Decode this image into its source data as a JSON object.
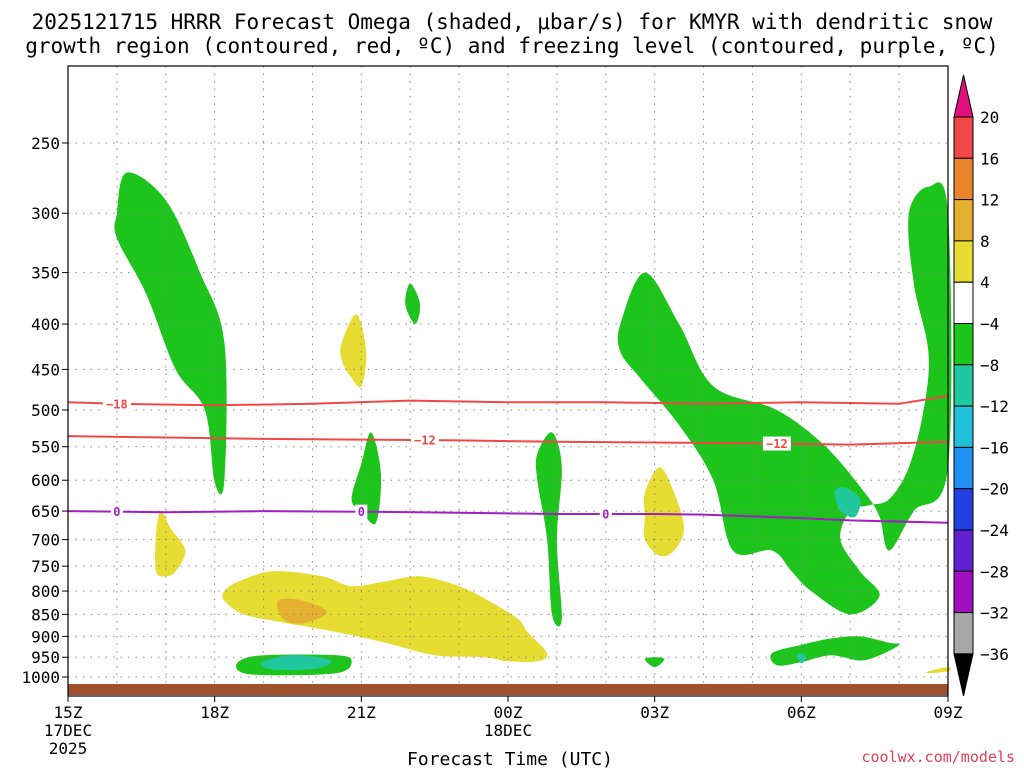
{
  "title": {
    "line1": "2025121715 HRRR Forecast Omega (shaded, μbar/s) for KMYR with dendritic snow",
    "line2": "growth region (contoured, red, ºC) and freezing level (contoured, purple, ºC)"
  },
  "credit": "coolwx.com/models",
  "colors": {
    "dgz": "#f04848",
    "freezing": "#a020c0",
    "ground": "#a0522d",
    "grid": "#888888"
  },
  "chart_data": {
    "type": "heatmap",
    "xlabel": "Forecast Time (UTC)",
    "ylabel": "",
    "xlim_hours": [
      0,
      18
    ],
    "ylim_hpa": [
      1015,
      190
    ],
    "y_ticks": [
      250,
      300,
      350,
      400,
      450,
      500,
      550,
      600,
      650,
      700,
      750,
      800,
      850,
      900,
      950,
      1000
    ],
    "x_ticks": [
      {
        "hour": 0,
        "label": "15Z",
        "sub1": "17DEC",
        "sub2": "2025"
      },
      {
        "hour": 3,
        "label": "18Z",
        "sub1": "",
        "sub2": ""
      },
      {
        "hour": 6,
        "label": "21Z",
        "sub1": "",
        "sub2": ""
      },
      {
        "hour": 9,
        "label": "00Z",
        "sub1": "18DEC",
        "sub2": ""
      },
      {
        "hour": 12,
        "label": "03Z",
        "sub1": "",
        "sub2": ""
      },
      {
        "hour": 15,
        "label": "06Z",
        "sub1": "",
        "sub2": ""
      },
      {
        "hour": 18,
        "label": "09Z",
        "sub1": "",
        "sub2": ""
      }
    ],
    "colorbar": [
      {
        "label": "20",
        "from": 16,
        "color": "#f04848"
      },
      {
        "label": "16",
        "from": 12,
        "color": "#e8852a"
      },
      {
        "label": "12",
        "from": 8,
        "color": "#e4b030"
      },
      {
        "label": "8",
        "from": 4,
        "color": "#e6dc32"
      },
      {
        "label": "4",
        "from": -4,
        "color": "#ffffff"
      },
      {
        "label": "−4",
        "from": -8,
        "color": "#1cc41c"
      },
      {
        "label": "−8",
        "from": -12,
        "color": "#20c8a0"
      },
      {
        "label": "−12",
        "from": -16,
        "color": "#20c0d8"
      },
      {
        "label": "−16",
        "from": -20,
        "color": "#2090f0"
      },
      {
        "label": "−20",
        "from": -24,
        "color": "#2040e0"
      },
      {
        "label": "−24",
        "from": -28,
        "color": "#6020d0"
      },
      {
        "label": "−28",
        "from": -32,
        "color": "#a010c0"
      },
      {
        "label": "−32",
        "from": -36,
        "color": "#a8a8a8"
      },
      {
        "label": "−36",
        "from": -40,
        "color": "#000000"
      }
    ],
    "colorbar_top_color": "#e0107a",
    "contours": [
      {
        "name": "dgz-minus18",
        "label": "−18",
        "color": "#f04848",
        "points": [
          [
            0,
            490
          ],
          [
            1,
            492
          ],
          [
            3,
            494
          ],
          [
            5,
            492
          ],
          [
            7,
            488
          ],
          [
            9,
            490
          ],
          [
            11,
            490
          ],
          [
            13,
            492
          ],
          [
            15,
            490
          ],
          [
            17,
            492
          ],
          [
            18,
            482
          ]
        ],
        "label_at": [
          1
        ]
      },
      {
        "name": "dgz-minus12",
        "label": "−12",
        "color": "#f04848",
        "points": [
          [
            0,
            535
          ],
          [
            2,
            537
          ],
          [
            4,
            539
          ],
          [
            6,
            540
          ],
          [
            8,
            541
          ],
          [
            10,
            543
          ],
          [
            12,
            544
          ],
          [
            14,
            545
          ],
          [
            16,
            547
          ],
          [
            18,
            543
          ]
        ],
        "label_at": [
          7.3,
          14.5
        ]
      },
      {
        "name": "freezing-level-0",
        "label": "0",
        "color": "#a020c0",
        "points": [
          [
            0,
            650
          ],
          [
            2,
            652
          ],
          [
            4,
            650
          ],
          [
            6,
            651
          ],
          [
            8,
            653
          ],
          [
            10,
            655
          ],
          [
            12,
            655
          ],
          [
            13,
            656
          ],
          [
            15,
            662
          ],
          [
            16,
            666
          ],
          [
            18,
            670
          ]
        ],
        "label_at": [
          1,
          6,
          11
        ]
      }
    ],
    "omega_regions": [
      {
        "value": -6,
        "points": [
          [
            1.0,
            300
          ],
          [
            1.2,
            270
          ],
          [
            2.0,
            290
          ],
          [
            2.7,
            350
          ],
          [
            3.2,
            420
          ],
          [
            3.2,
            600
          ],
          [
            3.0,
            603
          ],
          [
            2.8,
            500
          ],
          [
            2.2,
            450
          ],
          [
            1.6,
            370
          ],
          [
            1.0,
            320
          ]
        ]
      },
      {
        "value": -6,
        "points": [
          [
            5.8,
            630
          ],
          [
            6.0,
            575
          ],
          [
            6.2,
            530
          ],
          [
            6.4,
            590
          ],
          [
            6.3,
            670
          ],
          [
            6.0,
            650
          ]
        ]
      },
      {
        "value": -6,
        "points": [
          [
            7.0,
            360
          ],
          [
            7.2,
            380
          ],
          [
            7.1,
            400
          ],
          [
            6.9,
            380
          ]
        ]
      },
      {
        "value": -6,
        "points": [
          [
            9.6,
            560
          ],
          [
            9.9,
            530
          ],
          [
            10.1,
            580
          ],
          [
            10.0,
            700
          ],
          [
            10.1,
            860
          ],
          [
            9.9,
            850
          ],
          [
            9.8,
            700
          ],
          [
            9.6,
            600
          ]
        ]
      },
      {
        "value": -6,
        "points": [
          [
            11.3,
            400
          ],
          [
            11.8,
            350
          ],
          [
            12.5,
            400
          ],
          [
            13.2,
            470
          ],
          [
            14.5,
            500
          ],
          [
            15.5,
            550
          ],
          [
            16.3,
            620
          ],
          [
            16.6,
            660
          ],
          [
            16.8,
            720
          ],
          [
            17.3,
            650
          ],
          [
            18.0,
            580
          ],
          [
            18.0,
            300
          ],
          [
            17.6,
            280
          ],
          [
            17.2,
            300
          ],
          [
            17.3,
            360
          ],
          [
            17.6,
            430
          ],
          [
            17.5,
            500
          ],
          [
            17.2,
            580
          ],
          [
            16.8,
            630
          ],
          [
            16.4,
            640
          ],
          [
            16.0,
            650
          ],
          [
            15.8,
            700
          ],
          [
            16.2,
            760
          ],
          [
            16.6,
            810
          ],
          [
            16.0,
            850
          ],
          [
            15.2,
            800
          ],
          [
            14.8,
            760
          ],
          [
            14.4,
            720
          ],
          [
            13.6,
            720
          ],
          [
            13.2,
            600
          ],
          [
            12.5,
            520
          ],
          [
            11.7,
            460
          ],
          [
            11.3,
            430
          ]
        ]
      },
      {
        "value": -6,
        "points": [
          [
            3.5,
            960
          ],
          [
            4.0,
            945
          ],
          [
            5.5,
            945
          ],
          [
            5.8,
            960
          ],
          [
            5.5,
            990
          ],
          [
            4.0,
            995
          ],
          [
            3.5,
            985
          ]
        ]
      },
      {
        "value": -6,
        "points": [
          [
            11.8,
            955
          ],
          [
            12.0,
            950
          ],
          [
            12.2,
            955
          ],
          [
            12.0,
            975
          ]
        ]
      },
      {
        "value": -6,
        "points": [
          [
            14.4,
            940
          ],
          [
            15.0,
            920
          ],
          [
            15.6,
            905
          ],
          [
            16.2,
            900
          ],
          [
            16.8,
            915
          ],
          [
            17.0,
            920
          ],
          [
            16.6,
            945
          ],
          [
            16.2,
            958
          ],
          [
            15.6,
            945
          ],
          [
            15.0,
            962
          ],
          [
            14.5,
            970
          ]
        ]
      },
      {
        "value": -10,
        "points": [
          [
            4.0,
            960
          ],
          [
            4.5,
            945
          ],
          [
            5.0,
            948
          ],
          [
            5.4,
            960
          ],
          [
            5.1,
            978
          ],
          [
            4.4,
            982
          ],
          [
            4.0,
            975
          ]
        ]
      },
      {
        "value": -10,
        "points": [
          [
            15.7,
            615
          ],
          [
            15.9,
            612
          ],
          [
            16.2,
            630
          ],
          [
            16.1,
            660
          ],
          [
            15.8,
            650
          ],
          [
            15.7,
            630
          ]
        ]
      },
      {
        "value": -10,
        "points": [
          [
            14.9,
            945
          ],
          [
            15.0,
            940
          ],
          [
            15.1,
            950
          ],
          [
            15.0,
            965
          ]
        ]
      },
      {
        "value": 6,
        "points": [
          [
            5.6,
            420
          ],
          [
            5.9,
            390
          ],
          [
            6.1,
            430
          ],
          [
            6.0,
            470
          ],
          [
            5.8,
            460
          ],
          [
            5.6,
            440
          ]
        ]
      },
      {
        "value": 6,
        "points": [
          [
            1.8,
            690
          ],
          [
            1.9,
            650
          ],
          [
            2.1,
            680
          ],
          [
            2.4,
            720
          ],
          [
            2.2,
            760
          ],
          [
            2.0,
            770
          ],
          [
            1.8,
            760
          ]
        ]
      },
      {
        "value": 6,
        "points": [
          [
            3.2,
            800
          ],
          [
            3.5,
            780
          ],
          [
            4.2,
            760
          ],
          [
            5.2,
            770
          ],
          [
            5.8,
            790
          ],
          [
            6.5,
            780
          ],
          [
            7.2,
            770
          ],
          [
            8.0,
            790
          ],
          [
            8.6,
            820
          ],
          [
            9.2,
            860
          ],
          [
            9.4,
            890
          ],
          [
            9.8,
            940
          ],
          [
            9.6,
            960
          ],
          [
            9.0,
            960
          ],
          [
            8.5,
            950
          ],
          [
            7.5,
            945
          ],
          [
            6.5,
            915
          ],
          [
            5.5,
            890
          ],
          [
            4.5,
            870
          ],
          [
            3.6,
            850
          ],
          [
            3.2,
            820
          ]
        ]
      },
      {
        "value": 6,
        "points": [
          [
            11.8,
            620
          ],
          [
            12.1,
            580
          ],
          [
            12.4,
            620
          ],
          [
            12.6,
            680
          ],
          [
            12.4,
            720
          ],
          [
            12.1,
            730
          ],
          [
            11.8,
            700
          ],
          [
            11.8,
            660
          ]
        ]
      },
      {
        "value": 6,
        "points": [
          [
            17.6,
            985
          ],
          [
            18.0,
            975
          ],
          [
            18.0,
            985
          ],
          [
            17.6,
            990
          ]
        ]
      },
      {
        "value": 10,
        "points": [
          [
            4.3,
            820
          ],
          [
            4.8,
            820
          ],
          [
            5.3,
            845
          ],
          [
            4.8,
            870
          ],
          [
            4.4,
            860
          ]
        ]
      }
    ]
  }
}
